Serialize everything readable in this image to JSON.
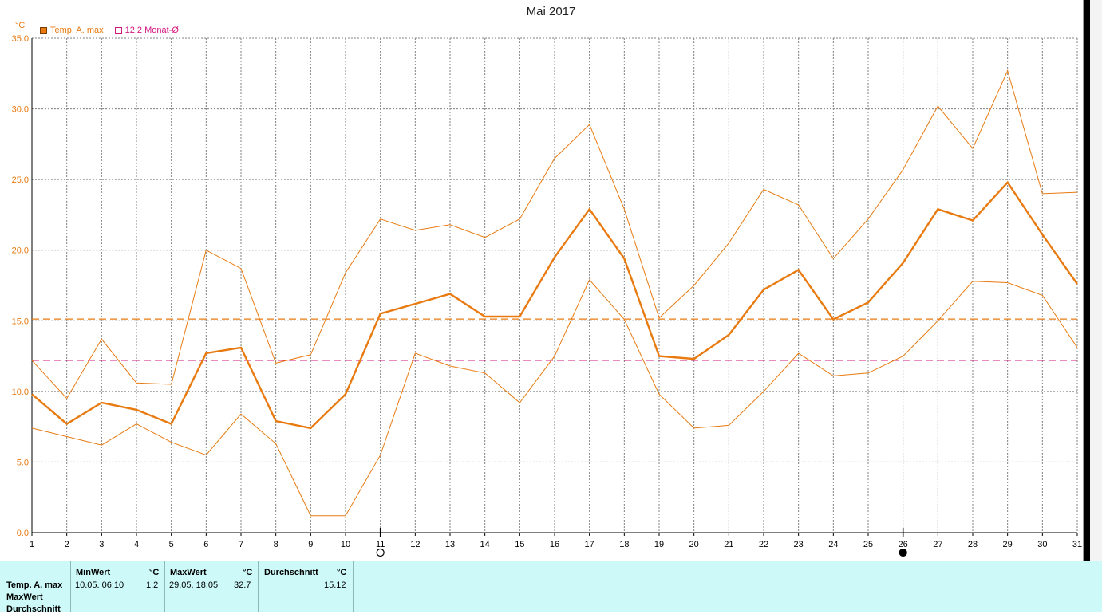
{
  "chart_data": {
    "type": "line",
    "title": "Mai 2017",
    "ylabel": "°C",
    "ylim": [
      0,
      35
    ],
    "yticks": [
      "0.0",
      "5.0",
      "10.0",
      "15.0",
      "20.0",
      "25.0",
      "30.0",
      "35.0"
    ],
    "x": [
      1,
      2,
      3,
      4,
      5,
      6,
      7,
      8,
      9,
      10,
      11,
      12,
      13,
      14,
      15,
      16,
      17,
      18,
      19,
      20,
      21,
      22,
      23,
      24,
      25,
      26,
      27,
      28,
      29,
      30,
      31
    ],
    "series": [
      {
        "name": "Temp. A. max",
        "role": "average",
        "color": "#e87a10",
        "values": [
          9.8,
          7.7,
          9.2,
          8.7,
          7.7,
          12.7,
          13.1,
          7.9,
          7.4,
          9.8,
          15.5,
          16.2,
          16.9,
          15.3,
          15.3,
          19.5,
          22.9,
          19.4,
          12.5,
          12.3,
          14.0,
          17.2,
          18.6,
          15.1,
          16.3,
          19.1,
          22.9,
          22.1,
          24.8,
          21.1,
          17.6
        ]
      },
      {
        "name": "",
        "role": "maximum",
        "color": "#e87a10",
        "values": [
          12.2,
          9.5,
          13.7,
          10.6,
          10.5,
          20.0,
          18.7,
          12.0,
          12.6,
          18.4,
          22.2,
          21.4,
          21.8,
          20.9,
          22.2,
          26.5,
          28.9,
          22.9,
          15.2,
          17.5,
          20.5,
          24.3,
          23.2,
          19.4,
          22.2,
          25.7,
          30.2,
          27.2,
          32.7,
          24.0,
          24.1
        ]
      },
      {
        "name": "",
        "role": "minimum",
        "color": "#e87a10",
        "values": [
          7.4,
          6.8,
          6.2,
          7.7,
          6.4,
          5.5,
          8.4,
          6.3,
          1.2,
          1.2,
          5.5,
          12.7,
          11.8,
          11.3,
          9.2,
          12.5,
          17.9,
          15.1,
          9.8,
          7.4,
          7.6,
          10.0,
          12.7,
          11.1,
          11.3,
          12.5,
          15.0,
          17.8,
          17.7,
          16.8,
          13.1
        ]
      }
    ],
    "reference_lines": [
      {
        "value": 15.12,
        "color": "#e87a10",
        "style": "dashed"
      },
      {
        "value": 12.2,
        "name": "12.2 Monat-Ø",
        "color": "#d4177f",
        "style": "dashed"
      }
    ],
    "moon_markers": [
      {
        "day": 11,
        "phase": "full"
      },
      {
        "day": 26,
        "phase": "new"
      }
    ],
    "legend": [
      {
        "label": "Temp. A. max",
        "color": "#e87a10",
        "filled": true
      },
      {
        "label": "12.2 Monat-Ø",
        "color": "#d4177f",
        "filled": false
      }
    ],
    "grid": true,
    "legend_position": "top-left"
  },
  "stats": {
    "rows": [
      "Temp. A. max",
      "MaxWert",
      "Durchschnitt"
    ],
    "min": {
      "header": "MinWert",
      "unit": "°C",
      "date": "10.05.  06:10",
      "value": "1.2"
    },
    "max": {
      "header": "MaxWert",
      "unit": "°C",
      "date": "29.05.  18:05",
      "value": "32.7"
    },
    "avg": {
      "header": "Durchschnitt",
      "unit": "°C",
      "value": "15.12"
    }
  }
}
